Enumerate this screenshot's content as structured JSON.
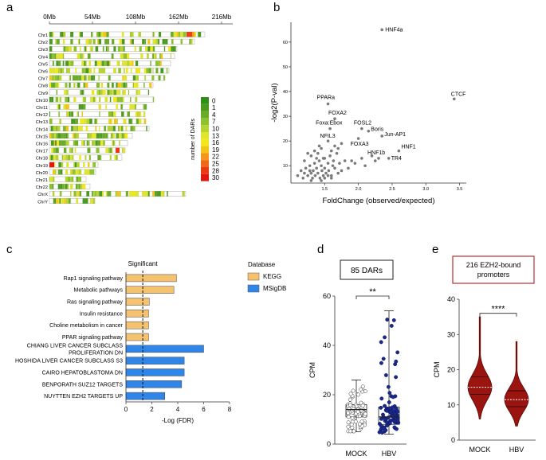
{
  "panel_labels": [
    "a",
    "b",
    "c",
    "d",
    "e"
  ],
  "colors": {
    "legend_scale": [
      "#2f8f1a",
      "#4b9a20",
      "#6aab27",
      "#8ec12e",
      "#b5d332",
      "#dfe42f",
      "#f1e81c",
      "#f4c518",
      "#f29717",
      "#ef6a16",
      "#ea3a14",
      "#e0170f"
    ],
    "kegg": "#f5c370",
    "msigdb": "#2f86e8",
    "hbv_dot": "#1a2a8a",
    "violin": "#9a1410",
    "scatter_dot": "#7a7a7a",
    "box_e_border": "#b52e2e"
  },
  "chart_data": [
    {
      "id": "a",
      "type": "heatmap",
      "title": "",
      "x_ticks": [
        "0Mb",
        "54Mb",
        "108Mb",
        "162Mb",
        "216Mb"
      ],
      "x_tick_values_mb": [
        0,
        54,
        108,
        162,
        216
      ],
      "chromosomes": [
        {
          "name": "Chr1",
          "length_mb": 195
        },
        {
          "name": "Chr2",
          "length_mb": 182
        },
        {
          "name": "Chr3",
          "length_mb": 160
        },
        {
          "name": "Chr4",
          "length_mb": 157
        },
        {
          "name": "Chr5",
          "length_mb": 152
        },
        {
          "name": "Chr6",
          "length_mb": 150
        },
        {
          "name": "Chr7",
          "length_mb": 145
        },
        {
          "name": "Chr8",
          "length_mb": 130
        },
        {
          "name": "Chr9",
          "length_mb": 125
        },
        {
          "name": "Chr10",
          "length_mb": 131
        },
        {
          "name": "Chr11",
          "length_mb": 122
        },
        {
          "name": "Chr12",
          "length_mb": 120
        },
        {
          "name": "Chr13",
          "length_mb": 121
        },
        {
          "name": "Chr14",
          "length_mb": 125
        },
        {
          "name": "Chr15",
          "length_mb": 104
        },
        {
          "name": "Chr16",
          "length_mb": 98
        },
        {
          "name": "Chr17",
          "length_mb": 95
        },
        {
          "name": "Chr18",
          "length_mb": 91
        },
        {
          "name": "Chr19",
          "length_mb": 61
        },
        {
          "name": "Chr20",
          "length_mb": 58
        },
        {
          "name": "Chr21",
          "length_mb": 46
        },
        {
          "name": "Chr22",
          "length_mb": 51
        },
        {
          "name": "ChrX",
          "length_mb": 171
        },
        {
          "name": "ChrY",
          "length_mb": 57
        }
      ],
      "legend_title": "number of DARs",
      "legend_values": [
        0,
        1,
        4,
        7,
        10,
        13,
        16,
        19,
        22,
        25,
        28,
        30
      ]
    },
    {
      "id": "b",
      "type": "scatter",
      "xlabel": "FoldChange (observed/expected)",
      "ylabel": "-log2(P-val)",
      "xlim": [
        1.0,
        3.6
      ],
      "ylim": [
        3,
        68
      ],
      "x_ticks": [
        1.5,
        2.0,
        2.5,
        3.0,
        3.5
      ],
      "y_ticks": [
        10,
        20,
        30,
        40,
        50,
        60
      ],
      "labeled_points": [
        {
          "label": "HNF4a",
          "x": 2.35,
          "y": 65
        },
        {
          "label": "CTCF",
          "x": 3.42,
          "y": 37
        },
        {
          "label": "PPARa",
          "x": 1.55,
          "y": 35
        },
        {
          "label": "FOXA2",
          "x": 1.65,
          "y": 29
        },
        {
          "label": "Foxa:Ebox",
          "x": 1.58,
          "y": 25
        },
        {
          "label": "FOSL2",
          "x": 2.05,
          "y": 25
        },
        {
          "label": "Boris",
          "x": 2.15,
          "y": 24
        },
        {
          "label": "NFIL3",
          "x": 1.55,
          "y": 20
        },
        {
          "label": "Jun-AP1",
          "x": 2.35,
          "y": 22
        },
        {
          "label": "FOXA3",
          "x": 2.0,
          "y": 21
        },
        {
          "label": "HNF1",
          "x": 2.6,
          "y": 16
        },
        {
          "label": "HNF1b",
          "x": 2.3,
          "y": 13
        },
        {
          "label": "TR4",
          "x": 2.45,
          "y": 13
        }
      ],
      "points": [
        [
          1.1,
          6
        ],
        [
          1.15,
          8
        ],
        [
          1.18,
          5
        ],
        [
          1.2,
          7
        ],
        [
          1.22,
          9
        ],
        [
          1.25,
          6
        ],
        [
          1.28,
          10
        ],
        [
          1.3,
          7
        ],
        [
          1.32,
          5
        ],
        [
          1.33,
          8
        ],
        [
          1.35,
          11
        ],
        [
          1.36,
          6
        ],
        [
          1.38,
          9
        ],
        [
          1.4,
          7
        ],
        [
          1.42,
          12
        ],
        [
          1.43,
          5
        ],
        [
          1.45,
          10
        ],
        [
          1.46,
          8
        ],
        [
          1.48,
          6
        ],
        [
          1.5,
          13
        ],
        [
          1.5,
          9
        ],
        [
          1.52,
          7
        ],
        [
          1.55,
          11
        ],
        [
          1.56,
          8
        ],
        [
          1.58,
          14
        ],
        [
          1.6,
          6
        ],
        [
          1.62,
          10
        ],
        [
          1.63,
          12
        ],
        [
          1.65,
          9
        ],
        [
          1.68,
          15
        ],
        [
          1.7,
          7
        ],
        [
          1.72,
          11
        ],
        [
          1.3,
          14
        ],
        [
          1.35,
          16
        ],
        [
          1.4,
          15
        ],
        [
          1.42,
          18
        ],
        [
          1.45,
          17
        ],
        [
          1.48,
          13
        ],
        [
          1.6,
          16
        ],
        [
          1.65,
          18
        ],
        [
          1.7,
          17
        ],
        [
          1.75,
          19
        ],
        [
          1.38,
          13
        ],
        [
          1.25,
          15
        ],
        [
          1.2,
          12
        ],
        [
          1.28,
          8
        ],
        [
          1.9,
          12
        ],
        [
          1.95,
          11
        ],
        [
          2.05,
          13
        ],
        [
          2.1,
          10
        ],
        [
          1.8,
          12
        ],
        [
          1.85,
          9
        ],
        [
          2.2,
          14
        ],
        [
          2.25,
          12
        ],
        [
          1.5,
          5
        ],
        [
          1.55,
          6
        ],
        [
          1.6,
          5
        ],
        [
          1.45,
          4
        ],
        [
          1.3,
          4
        ],
        [
          1.75,
          8
        ]
      ]
    },
    {
      "id": "c",
      "type": "bar",
      "orientation": "horizontal",
      "xlabel": "-Log (FDR)",
      "xlim": [
        0,
        8
      ],
      "x_ticks": [
        0,
        2,
        4,
        6,
        8
      ],
      "significance_threshold": 1.3,
      "significance_label": "Significant",
      "legend_title": "Database",
      "series": [
        {
          "name": "KEGG",
          "categories": [
            "Rap1 signaling pathway",
            "Metabolic pathways",
            "Ras signaling pathway",
            "Insulin resistance",
            "Choline metabolism in cancer",
            "PPAR signaling pathway"
          ],
          "values": [
            3.9,
            3.7,
            1.8,
            1.75,
            1.75,
            1.75
          ]
        },
        {
          "name": "MSigDB",
          "categories": [
            "CHIANG LIVER CANCER SUBCLASS PROLIFERATION DN",
            "HOSHIDA LIVER CANCER SUBCLASS S3",
            "CAIRO HEPATOBLASTOMA DN",
            "BENPORATH SUZ12 TARGETS",
            "NUYTTEN EZH2 TARGETS UP"
          ],
          "values": [
            6.0,
            4.5,
            4.5,
            4.3,
            3.0
          ]
        }
      ],
      "category_lines": [
        [
          "Rap1 signaling pathway"
        ],
        [
          "Metabolic pathways"
        ],
        [
          "Ras signaling pathway"
        ],
        [
          "Insulin resistance"
        ],
        [
          "Choline metabolism in cancer"
        ],
        [
          "PPAR signaling pathway"
        ],
        [
          "CHIANG LIVER CANCER SUBCLASS",
          "PROLIFERATION DN"
        ],
        [
          "HOSHIDA LIVER CANCER SUBCLASS S3"
        ],
        [
          "CAIRO HEPATOBLASTOMA DN"
        ],
        [
          "BENPORATH SUZ12 TARGETS"
        ],
        [
          "NUYTTEN EZH2 TARGETS UP"
        ]
      ]
    },
    {
      "id": "d",
      "type": "box",
      "title": "85 DARs",
      "ylabel": "CPM",
      "ylim": [
        0,
        60
      ],
      "y_ticks": [
        0,
        20,
        40,
        60
      ],
      "categories": [
        "MOCK",
        "HBV"
      ],
      "significance": "**",
      "stats": [
        {
          "name": "MOCK",
          "min": 5,
          "q1": 11,
          "median": 14,
          "q3": 16,
          "max": 26
        },
        {
          "name": "HBV",
          "min": 4,
          "q1": 8,
          "median": 11,
          "q3": 15,
          "max": 54
        }
      ]
    },
    {
      "id": "e",
      "type": "violin",
      "title": "216 EZH2-bound promoters",
      "title_lines": [
        "216 EZH2-bound",
        "promoters"
      ],
      "ylabel": "CPM",
      "ylim": [
        0,
        40
      ],
      "y_ticks": [
        0,
        10,
        20,
        30,
        40
      ],
      "categories": [
        "MOCK",
        "HBV"
      ],
      "significance": "****",
      "stats": [
        {
          "name": "MOCK",
          "min": 6,
          "q1": 13,
          "median": 15,
          "q3": 18,
          "max": 35
        },
        {
          "name": "HBV",
          "min": 4,
          "q1": 9.5,
          "median": 11.5,
          "q3": 14,
          "max": 28
        }
      ]
    }
  ]
}
